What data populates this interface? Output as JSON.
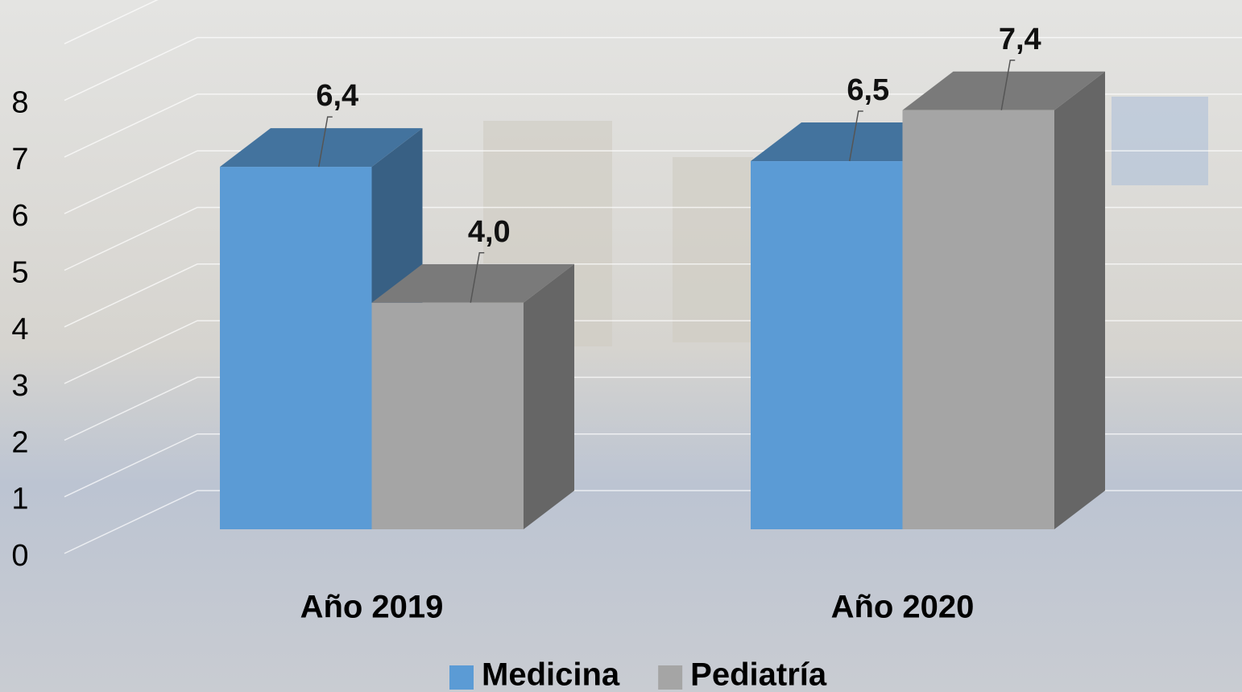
{
  "chart_data": {
    "type": "bar3d",
    "categories": [
      "Año 2019",
      "Año 2020"
    ],
    "series": [
      {
        "name": "Medicina",
        "color": "#5b9bd5",
        "values": [
          6.4,
          6.5
        ],
        "value_labels": [
          "6,4",
          "6,5"
        ]
      },
      {
        "name": "Pediatría",
        "color": "#a5a5a5",
        "values": [
          4.0,
          7.4
        ],
        "value_labels": [
          "4,0",
          "7,4"
        ]
      }
    ],
    "ylim": [
      0,
      9
    ],
    "yticks": [
      0,
      1,
      2,
      3,
      4,
      5,
      6,
      7,
      8
    ],
    "grid": true,
    "legend": "bottom"
  }
}
